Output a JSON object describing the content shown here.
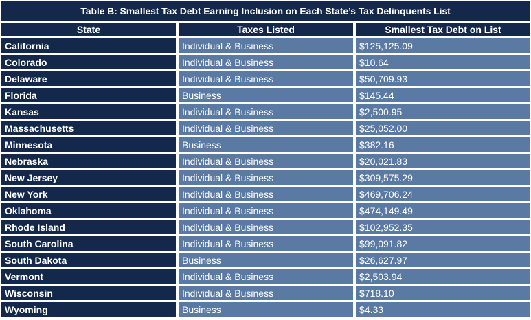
{
  "title": "Table B: Smallest Tax Debt Earning Inclusion on Each State’s Tax Delinquents List",
  "headers": [
    "State",
    "Taxes Listed",
    "Smallest Tax Debt on List"
  ],
  "rows": [
    {
      "state": "California",
      "taxes": "Individual & Business",
      "debt": "$125,125.09"
    },
    {
      "state": "Colorado",
      "taxes": "Individual & Business",
      "debt": "$10.64"
    },
    {
      "state": "Delaware",
      "taxes": "Individual & Business",
      "debt": "$50,709.93"
    },
    {
      "state": "Florida",
      "taxes": "Business",
      "debt": "$145.44"
    },
    {
      "state": "Kansas",
      "taxes": "Individual & Business",
      "debt": "$2,500.95"
    },
    {
      "state": "Massachusetts",
      "taxes": "Individual & Business",
      "debt": "$25,052.00"
    },
    {
      "state": "Minnesota",
      "taxes": "Business",
      "debt": "$382.16"
    },
    {
      "state": "Nebraska",
      "taxes": "Individual & Business",
      "debt": "$20,021.83"
    },
    {
      "state": "New Jersey",
      "taxes": "Individual & Business",
      "debt": "$309,575.29"
    },
    {
      "state": "New York",
      "taxes": "Individual & Business",
      "debt": "$469,706.24"
    },
    {
      "state": "Oklahoma",
      "taxes": "Individual & Business",
      "debt": "$474,149.49"
    },
    {
      "state": "Rhode Island",
      "taxes": "Individual & Business",
      "debt": "$102,952.35"
    },
    {
      "state": "South Carolina",
      "taxes": "Individual & Business",
      "debt": "$99,091.82"
    },
    {
      "state": "South Dakota",
      "taxes": "Business",
      "debt": "$26,627.97"
    },
    {
      "state": "Vermont",
      "taxes": "Individual & Business",
      "debt": "$2,503.94"
    },
    {
      "state": "Wisconsin",
      "taxes": "Individual & Business",
      "debt": "$718.10"
    },
    {
      "state": "Wyoming",
      "taxes": "Business",
      "debt": "$4.33"
    }
  ],
  "colors": {
    "header_bg": "#14284b",
    "state_cell_bg": "#14284b",
    "value_cell_bg": "#5a79a3",
    "text": "#ffffff"
  }
}
